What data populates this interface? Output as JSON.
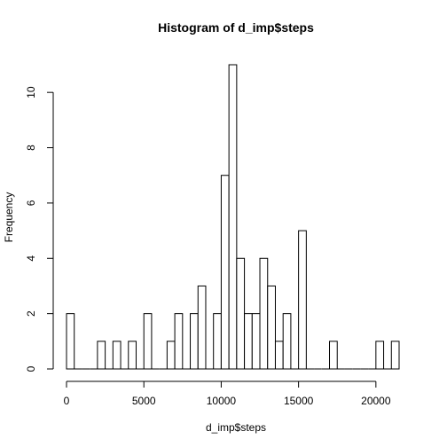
{
  "chart_data": {
    "type": "bar",
    "title": "Histogram of d_imp$steps",
    "xlabel": "d_imp$steps",
    "ylabel": "Frequency",
    "bin_width": 500,
    "x_start": 0,
    "counts": [
      2,
      0,
      0,
      0,
      1,
      0,
      1,
      0,
      1,
      0,
      2,
      0,
      0,
      1,
      2,
      0,
      2,
      3,
      0,
      2,
      7,
      11,
      4,
      2,
      2,
      4,
      3,
      1,
      2,
      0,
      5,
      0,
      0,
      0,
      1,
      0,
      0,
      0,
      0,
      0,
      1,
      0,
      1
    ],
    "xlim": [
      0,
      21500
    ],
    "ylim": [
      0,
      11
    ],
    "xticks": [
      0,
      5000,
      10000,
      15000,
      20000
    ],
    "yticks": [
      0,
      2,
      4,
      6,
      8,
      10
    ],
    "grid": false,
    "bar_fill": "#ffffff",
    "bar_stroke": "#000000"
  }
}
